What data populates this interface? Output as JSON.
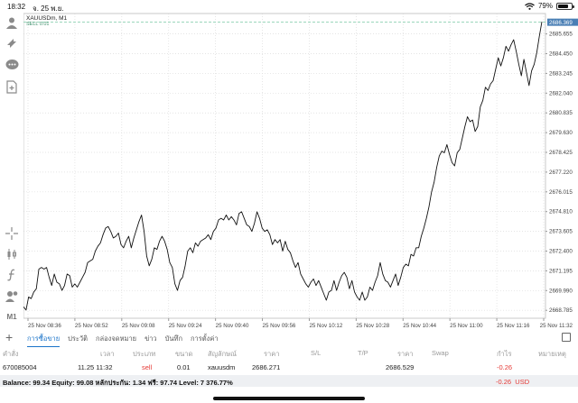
{
  "status_bar": {
    "time": "18:32",
    "date": "จ. 25 พ.ย.",
    "battery": "79%",
    "battery_level": 0.79
  },
  "toolbar": {
    "timeframe_label": "M1"
  },
  "chart_data": {
    "type": "line",
    "symbol_header": "XAUUSDm, M1",
    "sub_header": "SELL 0.01",
    "current_price_label": "2686.369",
    "x_tick_labels": [
      "25 Nov 08:36",
      "25 Nov 08:52",
      "25 Nov 09:08",
      "25 Nov 09:24",
      "25 Nov 09:40",
      "25 Nov 09:56",
      "25 Nov 10:12",
      "25 Nov 10:28",
      "25 Nov 10:44",
      "25 Nov 11:00",
      "25 Nov 11:16",
      "25 Nov 11:32"
    ],
    "y_ticks": [
      2668.785,
      2669.99,
      2671.195,
      2672.4,
      2673.605,
      2674.81,
      2676.015,
      2677.22,
      2678.425,
      2679.63,
      2680.835,
      2682.04,
      2683.245,
      2684.45,
      2685.655
    ],
    "ylim": [
      2668.3,
      2686.9
    ],
    "values": [
      2669.0,
      2668.8,
      2669.6,
      2669.5,
      2669.9,
      2670.1,
      2671.3,
      2671.4,
      2671.3,
      2671.4,
      2670.8,
      2670.3,
      2671.0,
      2670.5,
      2670.4,
      2670.0,
      2670.3,
      2671.0,
      2670.9,
      2670.2,
      2670.4,
      2670.2,
      2670.5,
      2670.8,
      2671.1,
      2671.7,
      2671.8,
      2671.9,
      2672.4,
      2672.7,
      2672.9,
      2673.4,
      2673.8,
      2673.9,
      2673.6,
      2673.2,
      2673.3,
      2673.5,
      2672.8,
      2672.6,
      2673.0,
      2673.3,
      2672.6,
      2673.2,
      2673.7,
      2674.2,
      2674.6,
      2673.6,
      2672.1,
      2671.5,
      2671.9,
      2672.6,
      2672.5,
      2673.0,
      2673.3,
      2673.0,
      2672.5,
      2671.7,
      2671.4,
      2670.4,
      2670.0,
      2670.6,
      2670.8,
      2671.5,
      2672.4,
      2672.6,
      2672.3,
      2672.9,
      2672.7,
      2673.0,
      2673.1,
      2673.2,
      2673.4,
      2673.1,
      2673.6,
      2673.8,
      2674.3,
      2674.4,
      2674.3,
      2674.6,
      2674.3,
      2674.5,
      2674.3,
      2674.0,
      2674.7,
      2674.8,
      2674.4,
      2674.0,
      2673.9,
      2673.6,
      2674.1,
      2674.8,
      2674.4,
      2673.8,
      2673.6,
      2673.7,
      2673.4,
      2672.8,
      2673.1,
      2672.9,
      2673.1,
      2672.4,
      2673.0,
      2672.5,
      2672.3,
      2671.8,
      2671.4,
      2671.7,
      2671.0,
      2670.7,
      2670.4,
      2670.2,
      2670.5,
      2670.7,
      2670.3,
      2670.6,
      2670.2,
      2669.8,
      2669.4,
      2669.9,
      2670.0,
      2670.6,
      2670.0,
      2670.5,
      2670.9,
      2671.1,
      2670.8,
      2670.1,
      2670.6,
      2669.9,
      2669.6,
      2669.4,
      2669.9,
      2669.4,
      2669.6,
      2670.2,
      2670.0,
      2670.5,
      2670.9,
      2671.7,
      2671.0,
      2670.6,
      2670.5,
      2670.2,
      2670.6,
      2671.0,
      2670.3,
      2670.8,
      2671.4,
      2671.6,
      2671.5,
      2672.2,
      2672.1,
      2672.6,
      2672.6,
      2673.3,
      2673.8,
      2674.4,
      2675.1,
      2676.0,
      2676.6,
      2677.5,
      2678.2,
      2678.5,
      2678.4,
      2678.9,
      2678.3,
      2677.8,
      2677.6,
      2678.4,
      2678.6,
      2679.3,
      2680.0,
      2680.6,
      2680.3,
      2680.4,
      2679.7,
      2680.0,
      2681.2,
      2681.6,
      2682.4,
      2682.2,
      2682.6,
      2682.8,
      2683.5,
      2684.2,
      2683.7,
      2684.2,
      2684.9,
      2684.6,
      2685.0,
      2685.3,
      2684.6,
      2683.8,
      2683.1,
      2684.1,
      2683.3,
      2682.5,
      2683.4,
      2683.8,
      2684.5,
      2685.5,
      2686.4
    ]
  },
  "panel": {
    "tabs": [
      "การซื้อขาย",
      "ประวัติ",
      "กล่องจดหมาย",
      "ข่าว",
      "บันทึก",
      "การตั้งค่า"
    ],
    "active_tab": 0,
    "columns": [
      "คำสั่ง",
      "เวลา",
      "ประเภท",
      "ขนาด",
      "สัญลักษณ์",
      "ราคา",
      "S/L",
      "T/P",
      "ราคา",
      "Swap",
      "กำไร",
      "หมายเหตุ"
    ],
    "order": {
      "ticket": "670085004",
      "time": "11.25 11:32",
      "type": "sell",
      "volume": "0.01",
      "symbol": "xauusdm",
      "open_price": "2686.271",
      "current_price": "2686.529",
      "profit": "-0.26"
    },
    "balance_text": "Balance: 99.34 Equity: 99.08 หลักประกัน: 1.34 ฟรี: 97.74 Level: 7 376.77%",
    "total_profit": "-0.26",
    "currency": "USD"
  },
  "colors": {
    "accent": "#1a73c9",
    "negative": "#e53935",
    "price_tag": "#4a7fb5",
    "order_line": "#7ac9a5"
  }
}
